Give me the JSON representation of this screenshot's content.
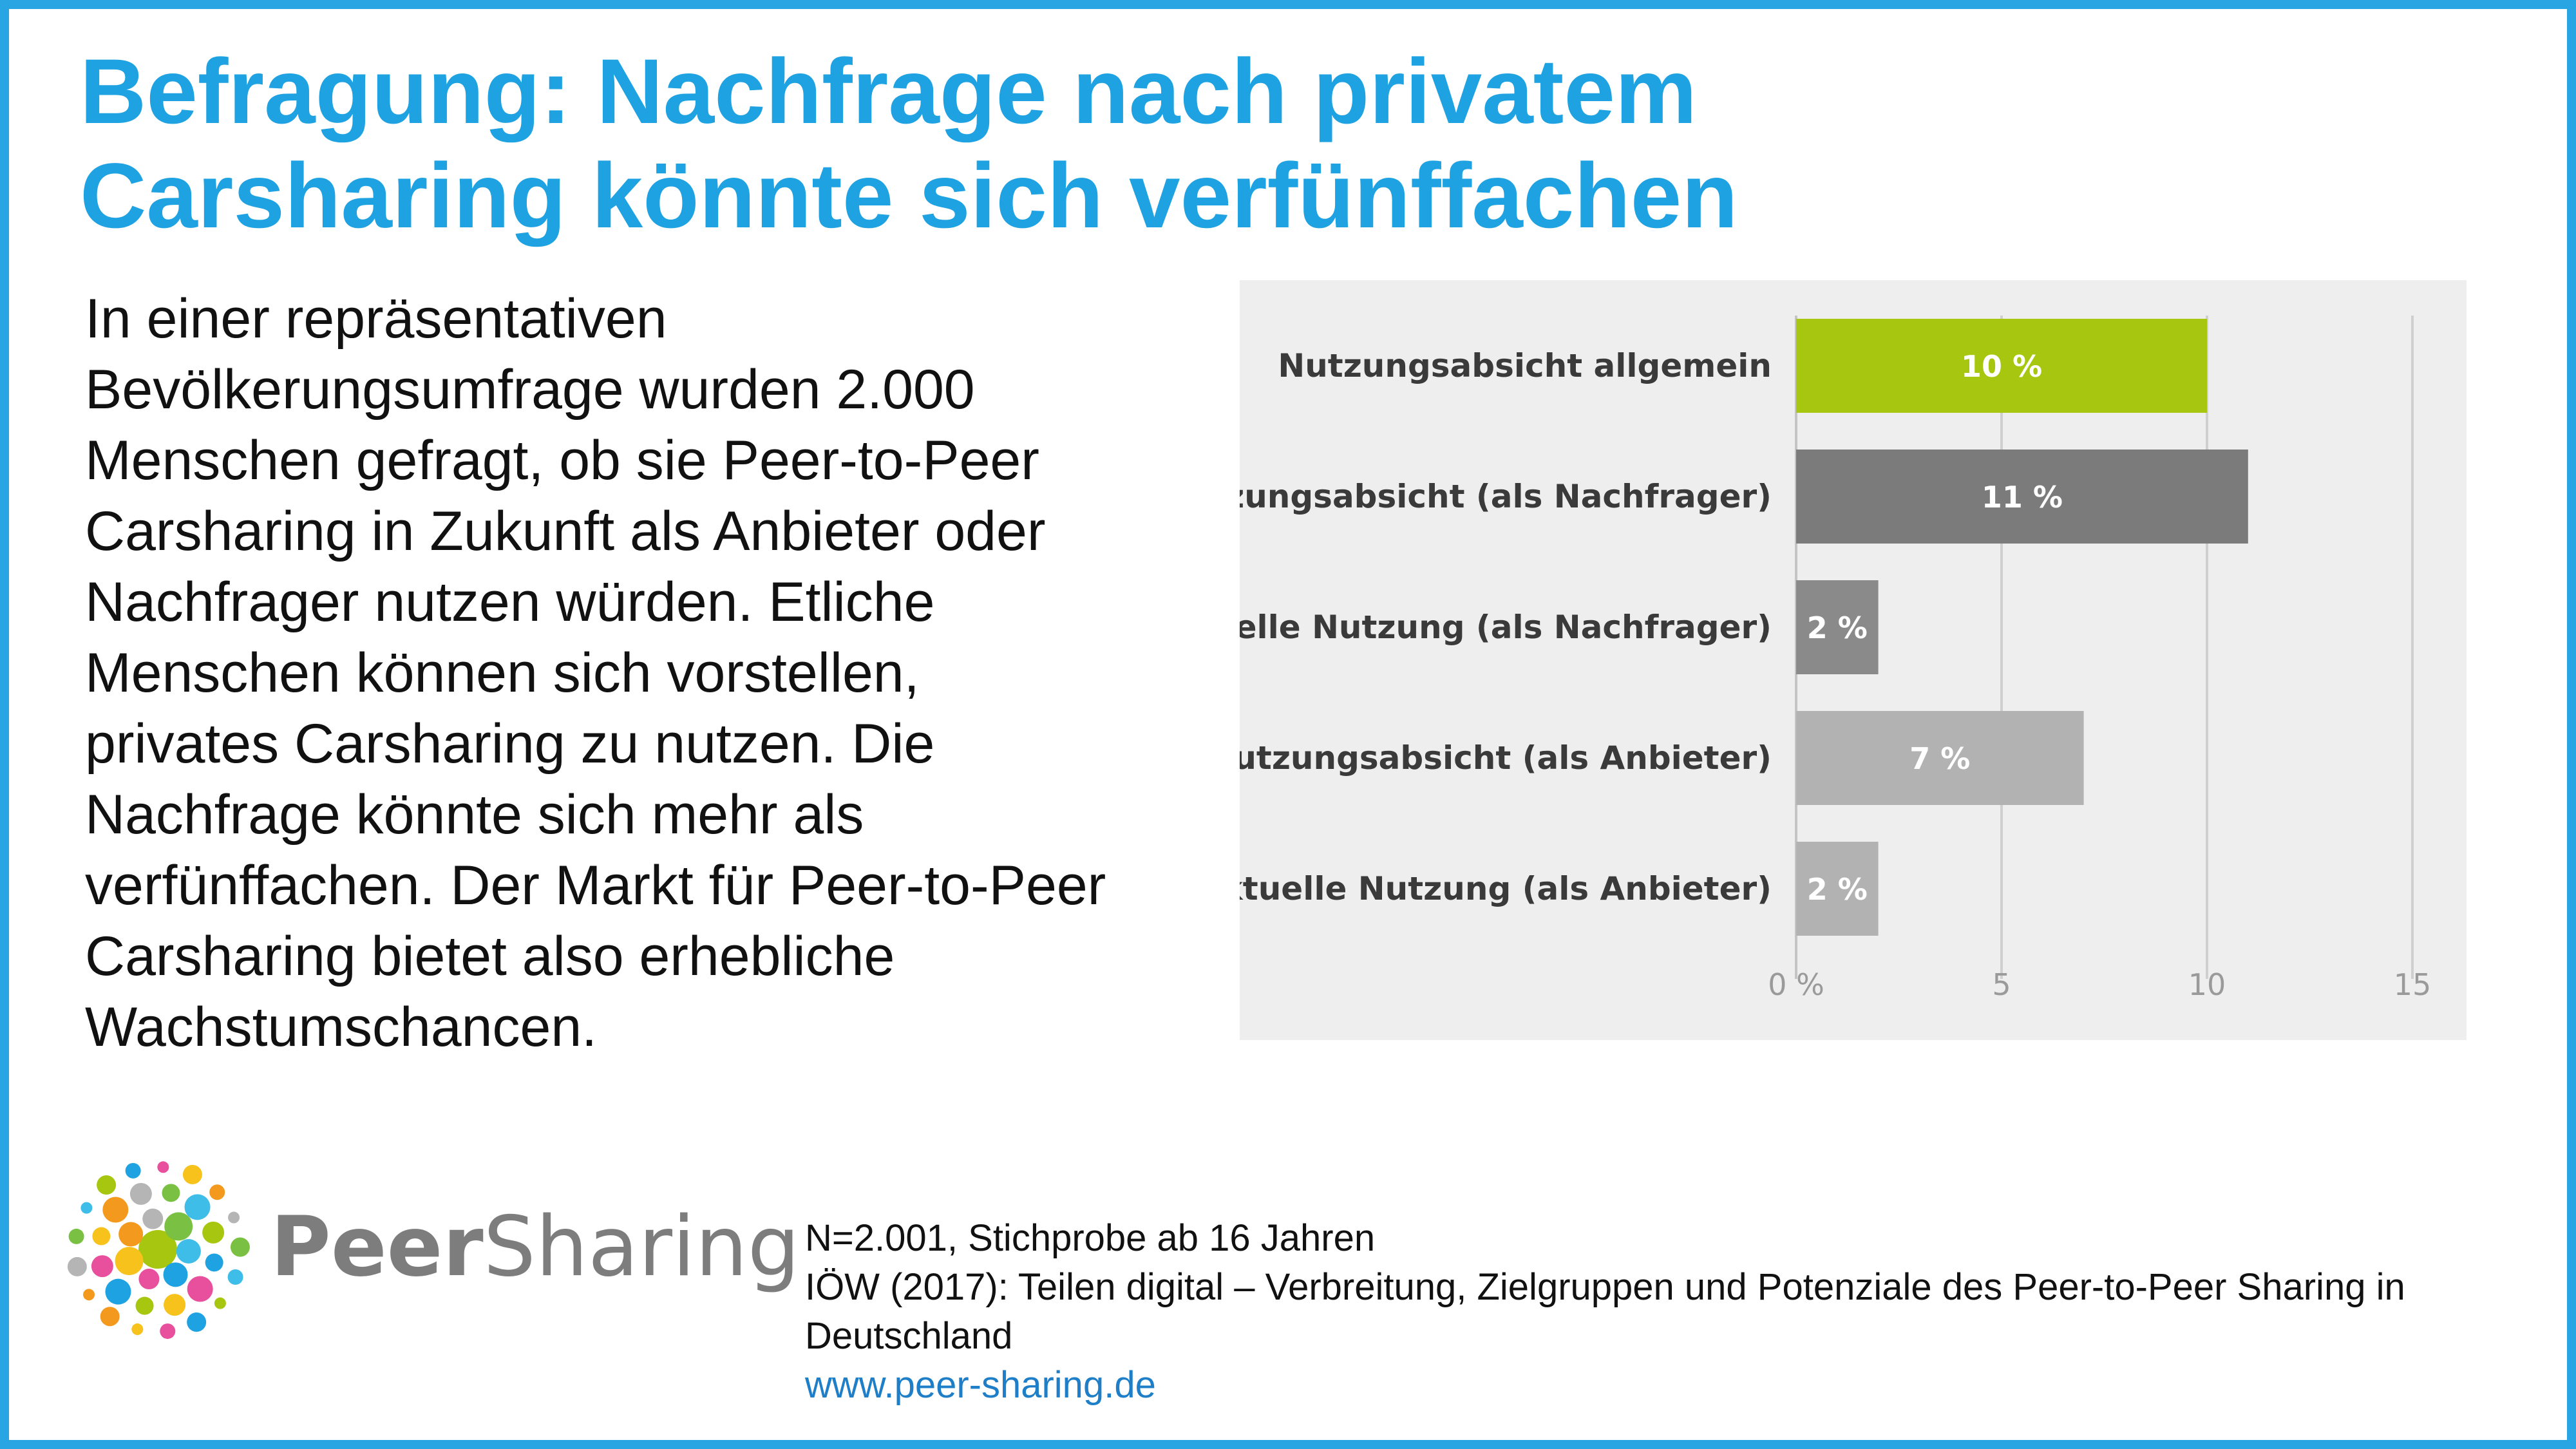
{
  "title": {
    "line1": "Befragung: Nachfrage nach privatem",
    "line2": "Carsharing könnte sich verfünffachen"
  },
  "body_text": "In einer repräsentativen Bevölkerungsumfrage wurden 2.000 Menschen gefragt, ob sie Peer-to-Peer Carsharing in Zukunft als Anbieter oder Nachfrager nutzen würden. Etliche Menschen können sich vorstellen, privates Carsharing zu nutzen. Die Nachfrage könnte sich mehr als verfünffachen. Der Markt für Peer-to-Peer Carsharing bietet also erhebliche Wachstumschancen.",
  "logo": {
    "peer": "Peer",
    "sharing": "Sharing"
  },
  "source": {
    "sample": "N=2.001, Stichprobe ab 16 Jahren",
    "citation": "IÖW (2017): Teilen digital – Verbreitung, Zielgruppen und Potenziale des Peer-to-Peer Sharing in Deutschland",
    "url": "www.peer-sharing.de"
  },
  "colors": {
    "accent": "#1ea2e2",
    "green": "#a6c60f",
    "dark_gray": "#7b7b7b",
    "mid_gray": "#8a8a8a",
    "light_gray": "#b2b2b2"
  },
  "chart_data": {
    "type": "bar",
    "orientation": "horizontal",
    "categories": [
      "Nutzungsabsicht allgemein",
      "Nutzungsabsicht (als Nachfrager)",
      "aktuelle Nutzung (als Nachfrager)",
      "Nutzungsabsicht (als Anbieter)",
      "aktuelle Nutzung (als Anbieter)"
    ],
    "values": [
      10,
      11,
      2,
      7,
      2
    ],
    "value_labels": [
      "10 %",
      "11 %",
      "2 %",
      "7 %",
      "2 %"
    ],
    "bar_colors": [
      "#a6c60f",
      "#7b7b7b",
      "#8a8a8a",
      "#b2b2b2",
      "#b2b2b2"
    ],
    "xlim": [
      0,
      15
    ],
    "xticks": [
      0,
      5,
      10,
      15
    ],
    "xtick_labels": [
      "0 %",
      "5",
      "10",
      "15"
    ],
    "grid": true
  }
}
